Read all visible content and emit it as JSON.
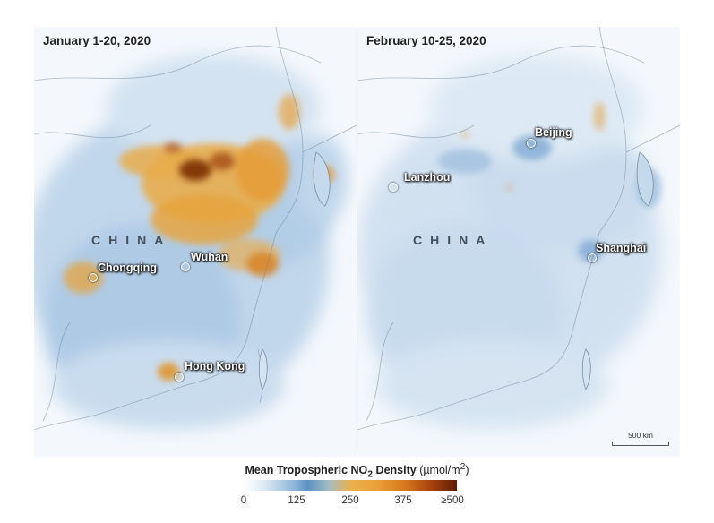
{
  "left_panel": {
    "title": "January 1-20, 2020",
    "country": "CHINA",
    "cities": [
      {
        "name": "Wuhan"
      },
      {
        "name": "Chongqing"
      },
      {
        "name": "Hong Kong"
      }
    ]
  },
  "right_panel": {
    "title": "February 10-25, 2020",
    "country": "CHINA",
    "cities": [
      {
        "name": "Beijing"
      },
      {
        "name": "Lanzhou"
      },
      {
        "name": "Shanghai"
      }
    ],
    "scale_label": "500 km"
  },
  "legend": {
    "title_main": "Mean Tropospheric NO",
    "title_sub": "2",
    "title_tail": " Density",
    "unit": " (µmol/m",
    "unit_sup": "2",
    "unit_close": ")",
    "ticks": [
      "0",
      "125",
      "250",
      "375",
      "≥500"
    ],
    "colors": {
      "low": "#ffffff",
      "blue": "#5b92c3",
      "mid": "#e8b24e",
      "orange": "#d97a1e",
      "high": "#5a1e04"
    }
  }
}
